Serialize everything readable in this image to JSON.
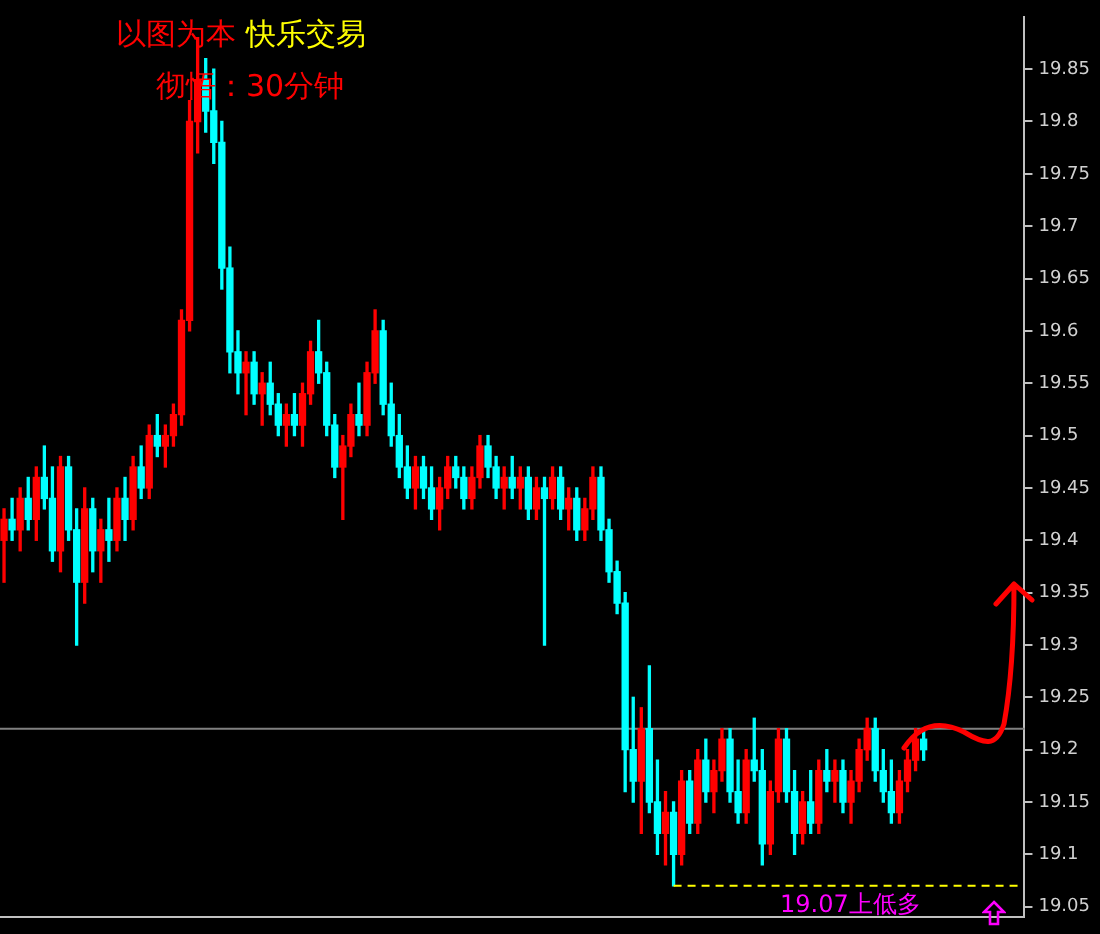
{
  "chart_data": {
    "type": "candlestick",
    "title": "以图为本 快乐交易",
    "subtitle": "彻悟：30分钟",
    "annotations": [
      "19.07上低多"
    ],
    "categories": [
      null,
      null,
      null,
      null,
      null,
      null,
      null,
      null,
      null,
      null,
      null,
      null,
      null,
      null,
      null,
      null,
      null,
      null,
      null,
      null,
      null,
      null,
      null,
      null,
      null,
      null,
      null,
      null,
      null,
      null,
      null,
      null,
      null,
      null,
      null,
      null,
      null,
      null,
      null,
      null,
      null,
      null,
      null,
      null,
      null,
      null,
      null,
      null,
      null,
      null,
      null,
      null,
      null,
      null,
      null,
      null,
      null,
      null,
      null,
      null,
      null,
      null,
      null,
      null,
      null,
      null,
      null,
      null,
      null,
      null,
      null,
      null,
      null,
      null,
      null,
      null,
      null,
      null,
      null,
      null,
      null,
      null,
      null,
      null,
      null,
      null,
      null,
      null,
      null,
      null,
      null,
      null,
      null,
      null,
      null,
      null,
      null,
      null,
      null,
      null,
      null,
      null,
      null,
      null,
      null,
      null,
      null,
      null,
      null,
      null,
      null,
      null,
      null,
      null,
      null,
      null,
      null,
      null,
      null,
      null,
      null,
      null,
      null,
      null,
      null,
      null,
      null
    ],
    "ohlc": [
      [
        19.4,
        19.43,
        19.36,
        19.42
      ],
      [
        19.42,
        19.44,
        19.4,
        19.41
      ],
      [
        19.41,
        19.45,
        19.39,
        19.44
      ],
      [
        19.44,
        19.46,
        19.41,
        19.42
      ],
      [
        19.42,
        19.47,
        19.4,
        19.46
      ],
      [
        19.46,
        19.49,
        19.43,
        19.44
      ],
      [
        19.44,
        19.47,
        19.38,
        19.39
      ],
      [
        19.39,
        19.48,
        19.37,
        19.47
      ],
      [
        19.47,
        19.48,
        19.4,
        19.41
      ],
      [
        19.41,
        19.43,
        19.3,
        19.36
      ],
      [
        19.36,
        19.45,
        19.34,
        19.43
      ],
      [
        19.43,
        19.44,
        19.37,
        19.39
      ],
      [
        19.39,
        19.42,
        19.36,
        19.41
      ],
      [
        19.41,
        19.44,
        19.38,
        19.4
      ],
      [
        19.4,
        19.45,
        19.39,
        19.44
      ],
      [
        19.44,
        19.46,
        19.4,
        19.42
      ],
      [
        19.42,
        19.48,
        19.41,
        19.47
      ],
      [
        19.47,
        19.49,
        19.44,
        19.45
      ],
      [
        19.45,
        19.51,
        19.44,
        19.5
      ],
      [
        19.5,
        19.52,
        19.48,
        19.49
      ],
      [
        19.49,
        19.51,
        19.47,
        19.5
      ],
      [
        19.5,
        19.53,
        19.49,
        19.52
      ],
      [
        19.52,
        19.62,
        19.51,
        19.61
      ],
      [
        19.61,
        19.82,
        19.6,
        19.8
      ],
      [
        19.8,
        19.88,
        19.77,
        19.84
      ],
      [
        19.84,
        19.86,
        19.79,
        19.81
      ],
      [
        19.81,
        19.85,
        19.76,
        19.78
      ],
      [
        19.78,
        19.8,
        19.64,
        19.66
      ],
      [
        19.66,
        19.68,
        19.56,
        19.58
      ],
      [
        19.58,
        19.6,
        19.54,
        19.56
      ],
      [
        19.56,
        19.58,
        19.52,
        19.57
      ],
      [
        19.57,
        19.58,
        19.53,
        19.54
      ],
      [
        19.54,
        19.56,
        19.51,
        19.55
      ],
      [
        19.55,
        19.57,
        19.52,
        19.53
      ],
      [
        19.53,
        19.54,
        19.5,
        19.51
      ],
      [
        19.51,
        19.53,
        19.49,
        19.52
      ],
      [
        19.52,
        19.54,
        19.5,
        19.51
      ],
      [
        19.51,
        19.55,
        19.49,
        19.54
      ],
      [
        19.54,
        19.59,
        19.53,
        19.58
      ],
      [
        19.58,
        19.61,
        19.55,
        19.56
      ],
      [
        19.56,
        19.57,
        19.5,
        19.51
      ],
      [
        19.51,
        19.52,
        19.46,
        19.47
      ],
      [
        19.47,
        19.5,
        19.42,
        19.49
      ],
      [
        19.49,
        19.53,
        19.48,
        19.52
      ],
      [
        19.52,
        19.55,
        19.5,
        19.51
      ],
      [
        19.51,
        19.57,
        19.5,
        19.56
      ],
      [
        19.56,
        19.62,
        19.55,
        19.6
      ],
      [
        19.6,
        19.61,
        19.52,
        19.53
      ],
      [
        19.53,
        19.55,
        19.49,
        19.5
      ],
      [
        19.5,
        19.52,
        19.46,
        19.47
      ],
      [
        19.47,
        19.49,
        19.44,
        19.45
      ],
      [
        19.45,
        19.48,
        19.43,
        19.47
      ],
      [
        19.47,
        19.48,
        19.44,
        19.45
      ],
      [
        19.45,
        19.47,
        19.42,
        19.43
      ],
      [
        19.43,
        19.46,
        19.41,
        19.45
      ],
      [
        19.45,
        19.48,
        19.44,
        19.47
      ],
      [
        19.47,
        19.48,
        19.45,
        19.46
      ],
      [
        19.46,
        19.47,
        19.43,
        19.44
      ],
      [
        19.44,
        19.47,
        19.43,
        19.46
      ],
      [
        19.46,
        19.5,
        19.45,
        19.49
      ],
      [
        19.49,
        19.5,
        19.46,
        19.47
      ],
      [
        19.47,
        19.48,
        19.44,
        19.45
      ],
      [
        19.45,
        19.47,
        19.43,
        19.46
      ],
      [
        19.46,
        19.48,
        19.44,
        19.45
      ],
      [
        19.45,
        19.47,
        19.43,
        19.46
      ],
      [
        19.46,
        19.47,
        19.42,
        19.43
      ],
      [
        19.43,
        19.46,
        19.42,
        19.45
      ],
      [
        19.45,
        19.46,
        19.3,
        19.44
      ],
      [
        19.44,
        19.47,
        19.43,
        19.46
      ],
      [
        19.46,
        19.47,
        19.42,
        19.43
      ],
      [
        19.43,
        19.45,
        19.41,
        19.44
      ],
      [
        19.44,
        19.45,
        19.4,
        19.41
      ],
      [
        19.41,
        19.44,
        19.4,
        19.43
      ],
      [
        19.43,
        19.47,
        19.42,
        19.46
      ],
      [
        19.46,
        19.47,
        19.4,
        19.41
      ],
      [
        19.41,
        19.42,
        19.36,
        19.37
      ],
      [
        19.37,
        19.38,
        19.33,
        19.34
      ],
      [
        19.34,
        19.35,
        19.16,
        19.2
      ],
      [
        19.2,
        19.25,
        19.15,
        19.17
      ],
      [
        19.17,
        19.24,
        19.12,
        19.22
      ],
      [
        19.22,
        19.28,
        19.14,
        19.15
      ],
      [
        19.15,
        19.19,
        19.1,
        19.12
      ],
      [
        19.12,
        19.16,
        19.09,
        19.14
      ],
      [
        19.14,
        19.15,
        19.07,
        19.1
      ],
      [
        19.1,
        19.18,
        19.09,
        19.17
      ],
      [
        19.17,
        19.18,
        19.12,
        19.13
      ],
      [
        19.13,
        19.2,
        19.12,
        19.19
      ],
      [
        19.19,
        19.21,
        19.15,
        19.16
      ],
      [
        19.16,
        19.19,
        19.14,
        19.18
      ],
      [
        19.18,
        19.22,
        19.17,
        19.21
      ],
      [
        19.21,
        19.22,
        19.15,
        19.16
      ],
      [
        19.16,
        19.19,
        19.13,
        19.14
      ],
      [
        19.14,
        19.2,
        19.13,
        19.19
      ],
      [
        19.19,
        19.23,
        19.17,
        19.18
      ],
      [
        19.18,
        19.2,
        19.09,
        19.11
      ],
      [
        19.11,
        19.17,
        19.1,
        19.16
      ],
      [
        19.16,
        19.22,
        19.15,
        19.21
      ],
      [
        19.21,
        19.22,
        19.15,
        19.16
      ],
      [
        19.16,
        19.18,
        19.1,
        19.12
      ],
      [
        19.12,
        19.16,
        19.11,
        19.15
      ],
      [
        19.15,
        19.18,
        19.12,
        19.13
      ],
      [
        19.13,
        19.19,
        19.12,
        19.18
      ],
      [
        19.18,
        19.2,
        19.16,
        19.17
      ],
      [
        19.17,
        19.19,
        19.15,
        19.18
      ],
      [
        19.18,
        19.19,
        19.14,
        19.15
      ],
      [
        19.15,
        19.18,
        19.13,
        19.17
      ],
      [
        19.17,
        19.21,
        19.16,
        19.2
      ],
      [
        19.2,
        19.23,
        19.19,
        19.22
      ],
      [
        19.22,
        19.23,
        19.17,
        19.18
      ],
      [
        19.18,
        19.2,
        19.15,
        19.16
      ],
      [
        19.16,
        19.19,
        19.13,
        19.14
      ],
      [
        19.14,
        19.18,
        19.13,
        19.17
      ],
      [
        19.17,
        19.2,
        19.16,
        19.19
      ],
      [
        19.19,
        19.22,
        19.18,
        19.21
      ],
      [
        19.21,
        19.22,
        19.19,
        19.2
      ],
      null,
      null,
      null,
      null,
      null,
      null,
      null,
      null,
      null,
      null,
      null,
      null
    ],
    "series": [
      {
        "type": "line",
        "color": "#ffff00",
        "line_style": "dashed",
        "values": [
          null,
          null,
          null,
          null,
          null,
          null,
          null,
          null,
          null,
          null,
          null,
          null,
          null,
          null,
          null,
          null,
          null,
          null,
          null,
          null,
          null,
          null,
          null,
          null,
          null,
          null,
          null,
          null,
          null,
          null,
          null,
          null,
          null,
          null,
          null,
          null,
          null,
          null,
          null,
          null,
          null,
          null,
          null,
          null,
          null,
          null,
          null,
          null,
          null,
          null,
          null,
          null,
          null,
          null,
          null,
          null,
          null,
          null,
          null,
          null,
          null,
          null,
          null,
          null,
          null,
          null,
          null,
          null,
          null,
          null,
          null,
          null,
          null,
          null,
          null,
          null,
          null,
          null,
          null,
          null,
          null,
          null,
          null,
          19.07,
          null,
          null,
          null,
          null,
          null,
          null,
          null,
          null,
          null,
          null,
          null,
          null,
          null,
          null,
          null,
          null,
          null,
          null,
          null,
          null,
          null,
          null,
          null,
          null,
          null,
          null,
          null,
          null,
          null,
          null,
          null,
          null,
          null,
          null,
          null,
          null,
          null,
          null,
          null,
          null,
          null,
          null,
          19.07
        ]
      }
    ],
    "colors": [
      "#ff0000",
      "#00ffff",
      "#ff0000",
      "#00ffff",
      "#ff0000",
      "#00ffff",
      "#00ffff",
      "#ff0000",
      "#00ffff",
      "#00ffff",
      "#ff0000",
      "#00ffff",
      "#ff0000",
      "#00ffff",
      "#ff0000",
      "#00ffff",
      "#ff0000",
      "#00ffff",
      "#ff0000",
      "#00ffff",
      "#ff0000",
      "#ff0000",
      "#ff0000",
      "#ff0000",
      "#ff0000",
      "#00ffff",
      "#00ffff",
      "#00ffff",
      "#00ffff",
      "#00ffff",
      "#ff0000",
      "#00ffff",
      "#ff0000",
      "#00ffff",
      "#00ffff",
      "#ff0000",
      "#00ffff",
      "#ff0000",
      "#ff0000",
      "#00ffff",
      "#00ffff",
      "#00ffff",
      "#ff0000",
      "#ff0000",
      "#00ffff",
      "#ff0000",
      "#ff0000",
      "#00ffff",
      "#00ffff",
      "#00ffff",
      "#00ffff",
      "#ff0000",
      "#00ffff",
      "#00ffff",
      "#ff0000",
      "#ff0000",
      "#00ffff",
      "#00ffff",
      "#ff0000",
      "#ff0000",
      "#00ffff",
      "#00ffff",
      "#ff0000",
      "#00ffff",
      "#ff0000",
      "#00ffff",
      "#ff0000",
      "#00ffff",
      "#ff0000",
      "#00ffff",
      "#ff0000",
      "#00ffff",
      "#ff0000",
      "#ff0000",
      "#00ffff",
      "#00ffff",
      "#00ffff",
      "#00ffff",
      "#00ffff",
      "#ff0000",
      "#00ffff",
      "#00ffff",
      "#ff0000",
      "#00ffff",
      "#ff0000",
      "#00ffff",
      "#ff0000",
      "#00ffff",
      "#ff0000",
      "#ff0000",
      "#00ffff",
      "#00ffff",
      "#ff0000",
      "#00ffff",
      "#00ffff",
      "#ff0000",
      "#ff0000",
      "#00ffff",
      "#00ffff",
      "#ff0000",
      "#00ffff",
      "#ff0000",
      "#00ffff",
      "#ff0000",
      "#00ffff",
      "#ff0000",
      "#ff0000",
      "#ff0000",
      "#00ffff",
      "#00ffff",
      "#00ffff",
      "#ff0000",
      "#ff0000",
      "#ff0000",
      "#00ffff",
      null,
      null,
      null,
      null,
      null,
      null,
      null,
      null,
      null,
      null,
      null,
      null
    ],
    "ylim": [
      19.04,
      19.9
    ],
    "yticks": [
      19.05,
      19.1,
      19.15,
      19.2,
      19.25,
      19.3,
      19.35,
      19.4,
      19.45,
      19.5,
      19.55,
      19.6,
      19.65,
      19.7,
      19.75,
      19.8,
      19.85
    ],
    "ref_lines": [
      {
        "axis": "y",
        "value": 19.22,
        "color": "#808080"
      }
    ],
    "tick_labels": "y",
    "grid": false,
    "legend": false
  }
}
